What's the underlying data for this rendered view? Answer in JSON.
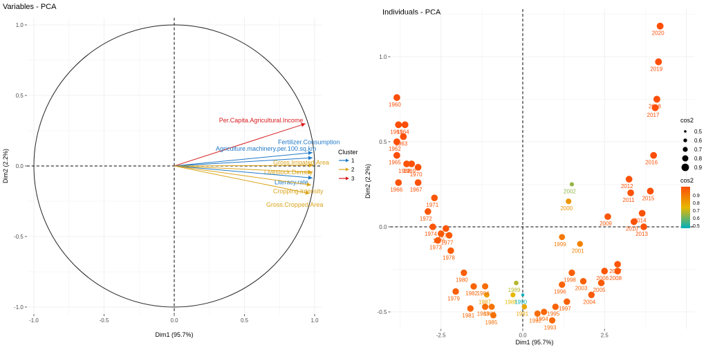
{
  "colors": {
    "cluster1": "#1f78c8",
    "cluster2": "#d9a41a",
    "cluster3": "#d7191c",
    "grid": "#ebebeb",
    "axis_text": "#4d4d4d"
  },
  "chart_data": [
    {
      "type": "scatter",
      "title": "Variables - PCA",
      "xlabel": "Dim1 (95.7%)",
      "ylabel": "Dim2 (2.2%)",
      "xlim": [
        -1.05,
        1.05
      ],
      "ylim": [
        -1.05,
        1.05
      ],
      "xticks": [
        {
          "v": -1.0,
          "label": "-1.0"
        },
        {
          "v": -0.5,
          "label": "-0.5"
        },
        {
          "v": 0.0,
          "label": "0.0"
        },
        {
          "v": 0.5,
          "label": "0.5"
        },
        {
          "v": 1.0,
          "label": "1.0"
        }
      ],
      "yticks": [
        {
          "v": -1.0,
          "label": "-1.0"
        },
        {
          "v": -0.5,
          "label": "-0.5"
        },
        {
          "v": 0.0,
          "label": "0.0"
        },
        {
          "v": 0.5,
          "label": "0.5"
        },
        {
          "v": 1.0,
          "label": "1.0"
        }
      ],
      "legend": {
        "title": "Cluster",
        "position": "right",
        "entries": [
          {
            "label": "1",
            "cluster": 1
          },
          {
            "label": "2",
            "cluster": 2
          },
          {
            "label": "3",
            "cluster": 3
          }
        ]
      },
      "variables": [
        {
          "name": "Per.Capita.Agricultural.Income",
          "x": 0.935,
          "y": 0.3,
          "cluster": 3
        },
        {
          "name": "Fertilizer.Consumption",
          "x": 0.985,
          "y": 0.095,
          "cluster": 1
        },
        {
          "name": "Agriculture.machinery.per.100.sq.km",
          "x": 0.985,
          "y": 0.058,
          "cluster": 1
        },
        {
          "name": "Gross.Irrigated.Area",
          "x": 0.99,
          "y": 0.005,
          "cluster": 2
        },
        {
          "name": "Livestock.Density",
          "x": 0.985,
          "y": -0.045,
          "cluster": 2
        },
        {
          "name": "Literacy.rate",
          "x": 0.985,
          "y": -0.085,
          "cluster": 1
        },
        {
          "name": "Cropping.Intensity",
          "x": 0.975,
          "y": -0.135,
          "cluster": 2
        },
        {
          "name": "Gross.Cropped.Area",
          "x": 0.965,
          "y": -0.195,
          "cluster": 2
        }
      ]
    },
    {
      "type": "scatter",
      "title": "Individuals - PCA",
      "xlabel": "Dim1 (95.7%)",
      "ylabel": "Dim2 (2.2%)",
      "xlim": [
        -4.05,
        5.25
      ],
      "ylim": [
        -0.6,
        1.28
      ],
      "xticks": [
        {
          "v": -2.5,
          "label": "-2.5"
        },
        {
          "v": 0.0,
          "label": "0.0"
        },
        {
          "v": 2.5,
          "label": "2.5"
        }
      ],
      "yticks": [
        {
          "v": -0.5,
          "label": "-0.5"
        },
        {
          "v": 0.0,
          "label": "0.0"
        },
        {
          "v": 0.5,
          "label": "0.5"
        },
        {
          "v": 1.0,
          "label": "1.0"
        }
      ],
      "legend_size": {
        "title": "cos2",
        "values": [
          "0.5",
          "0.6",
          "0.7",
          "0.8",
          "0.9"
        ]
      },
      "legend_color": {
        "title": "cos2",
        "values": [
          "0.9",
          "0.8",
          "0.7",
          "0.6",
          "0.5"
        ]
      },
      "points": [
        {
          "label": "1960",
          "x": -3.85,
          "y": 0.76,
          "cos2": 0.97
        },
        {
          "label": "1961",
          "x": -3.8,
          "y": 0.6,
          "cos2": 0.97
        },
        {
          "label": "1962",
          "x": -3.85,
          "y": 0.5,
          "cos2": 0.97
        },
        {
          "label": "1963",
          "x": -3.65,
          "y": 0.53,
          "cos2": 0.97
        },
        {
          "label": "1964",
          "x": -3.6,
          "y": 0.6,
          "cos2": 0.97
        },
        {
          "label": "1965",
          "x": -3.85,
          "y": 0.42,
          "cos2": 0.97
        },
        {
          "label": "1966",
          "x": -3.8,
          "y": 0.26,
          "cos2": 0.96
        },
        {
          "label": "1967",
          "x": -3.2,
          "y": 0.26,
          "cos2": 0.96
        },
        {
          "label": "1968",
          "x": -3.55,
          "y": 0.37,
          "cos2": 0.96
        },
        {
          "label": "1969",
          "x": -3.4,
          "y": 0.37,
          "cos2": 0.96
        },
        {
          "label": "1970",
          "x": -3.2,
          "y": 0.35,
          "cos2": 0.96
        },
        {
          "label": "1971",
          "x": -2.7,
          "y": 0.17,
          "cos2": 0.95
        },
        {
          "label": "1972",
          "x": -2.9,
          "y": 0.09,
          "cos2": 0.95
        },
        {
          "label": "1974",
          "x": -2.75,
          "y": 0.0,
          "cos2": 0.95
        },
        {
          "label": "1975",
          "x": -2.35,
          "y": -0.01,
          "cos2": 0.95
        },
        {
          "label": "1973",
          "x": -2.6,
          "y": -0.08,
          "cos2": 0.94
        },
        {
          "label": "1976",
          "x": -2.5,
          "y": -0.04,
          "cos2": 0.94
        },
        {
          "label": "1977",
          "x": -2.25,
          "y": -0.05,
          "cos2": 0.94
        },
        {
          "label": "1978",
          "x": -2.2,
          "y": -0.14,
          "cos2": 0.94
        },
        {
          "label": "1979",
          "x": -2.05,
          "y": -0.38,
          "cos2": 0.93
        },
        {
          "label": "1980",
          "x": -1.8,
          "y": -0.27,
          "cos2": 0.93
        },
        {
          "label": "1981",
          "x": -1.6,
          "y": -0.48,
          "cos2": 0.92
        },
        {
          "label": "1982",
          "x": -1.5,
          "y": -0.35,
          "cos2": 0.92
        },
        {
          "label": "1983",
          "x": -1.15,
          "y": -0.47,
          "cos2": 0.9
        },
        {
          "label": "1984",
          "x": -1.15,
          "y": -0.35,
          "cos2": 0.9
        },
        {
          "label": "1985",
          "x": -0.9,
          "y": -0.52,
          "cos2": 0.89
        },
        {
          "label": "1986",
          "x": -0.95,
          "y": -0.47,
          "cos2": 0.88
        },
        {
          "label": "1987",
          "x": -1.1,
          "y": -0.4,
          "cos2": 0.78
        },
        {
          "label": "1988",
          "x": -0.3,
          "y": -0.4,
          "cos2": 0.72
        },
        {
          "label": "1989",
          "x": -0.2,
          "y": -0.33,
          "cos2": 0.66
        },
        {
          "label": "1990",
          "x": 0.0,
          "y": -0.4,
          "cos2": 0.45
        },
        {
          "label": "1991",
          "x": 0.05,
          "y": -0.47,
          "cos2": 0.76
        },
        {
          "label": "1992",
          "x": 0.45,
          "y": -0.51,
          "cos2": 0.9
        },
        {
          "label": "1993",
          "x": 0.9,
          "y": -0.55,
          "cos2": 0.91
        },
        {
          "label": "1994",
          "x": 0.65,
          "y": -0.5,
          "cos2": 0.91
        },
        {
          "label": "1995",
          "x": 1.0,
          "y": -0.47,
          "cos2": 0.92
        },
        {
          "label": "1996",
          "x": 1.2,
          "y": -0.34,
          "cos2": 0.92
        },
        {
          "label": "1997",
          "x": 1.35,
          "y": -0.44,
          "cos2": 0.93
        },
        {
          "label": "1998",
          "x": 1.5,
          "y": -0.27,
          "cos2": 0.93
        },
        {
          "label": "1999",
          "x": 1.2,
          "y": -0.06,
          "cos2": 0.87
        },
        {
          "label": "2000",
          "x": 1.4,
          "y": 0.15,
          "cos2": 0.8
        },
        {
          "label": "2001",
          "x": 1.75,
          "y": -0.1,
          "cos2": 0.85
        },
        {
          "label": "2002",
          "x": 1.5,
          "y": 0.25,
          "cos2": 0.62
        },
        {
          "label": "2003",
          "x": 1.85,
          "y": -0.32,
          "cos2": 0.93
        },
        {
          "label": "2004",
          "x": 2.1,
          "y": -0.4,
          "cos2": 0.94
        },
        {
          "label": "2005",
          "x": 2.4,
          "y": -0.33,
          "cos2": 0.94
        },
        {
          "label": "2006",
          "x": 2.5,
          "y": -0.26,
          "cos2": 0.95
        },
        {
          "label": "2007",
          "x": 2.9,
          "y": -0.22,
          "cos2": 0.95
        },
        {
          "label": "2008",
          "x": 2.9,
          "y": -0.26,
          "cos2": 0.95
        },
        {
          "label": "2009",
          "x": 2.6,
          "y": 0.06,
          "cos2": 0.95
        },
        {
          "label": "2010",
          "x": 3.4,
          "y": 0.03,
          "cos2": 0.96
        },
        {
          "label": "2011",
          "x": 3.3,
          "y": 0.2,
          "cos2": 0.96
        },
        {
          "label": "2012",
          "x": 3.25,
          "y": 0.28,
          "cos2": 0.96
        },
        {
          "label": "2013",
          "x": 3.7,
          "y": 0.0,
          "cos2": 0.96
        },
        {
          "label": "2014",
          "x": 3.65,
          "y": 0.08,
          "cos2": 0.96
        },
        {
          "label": "2015",
          "x": 3.9,
          "y": 0.21,
          "cos2": 0.97
        },
        {
          "label": "2016",
          "x": 4.0,
          "y": 0.42,
          "cos2": 0.97
        },
        {
          "label": "2017",
          "x": 4.05,
          "y": 0.7,
          "cos2": 0.98
        },
        {
          "label": "2018",
          "x": 4.1,
          "y": 0.75,
          "cos2": 0.98
        },
        {
          "label": "2019",
          "x": 4.15,
          "y": 0.97,
          "cos2": 0.98
        },
        {
          "label": "2020",
          "x": 4.2,
          "y": 1.18,
          "cos2": 0.98
        }
      ]
    }
  ]
}
